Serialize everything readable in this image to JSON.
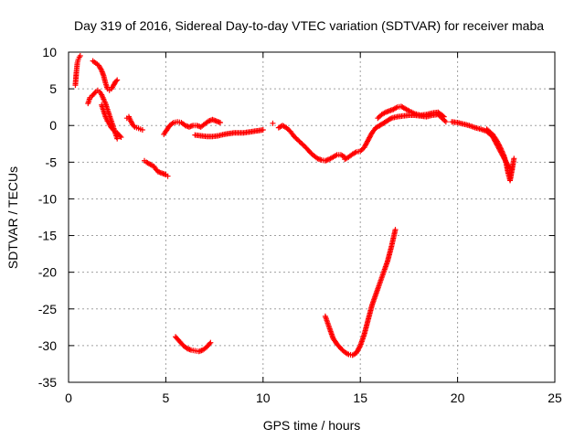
{
  "chart_data": {
    "type": "scatter",
    "title": "Day 319 of 2016, Sidereal Day-to-day VTEC variation (SDTVAR) for receiver maba",
    "xlabel": "GPS time / hours",
    "ylabel": "SDTVAR / TECUs",
    "xlim": [
      0,
      25
    ],
    "ylim": [
      -35,
      10
    ],
    "xticks": [
      0,
      5,
      10,
      15,
      20,
      25
    ],
    "yticks": [
      -35,
      -30,
      -25,
      -20,
      -15,
      -10,
      -5,
      0,
      5,
      10
    ],
    "grid": true,
    "legend": "none",
    "marker": "plus",
    "color": "#ff0000",
    "series": [
      {
        "x": [
          0.35,
          0.4,
          0.45,
          0.5,
          0.55,
          0.6
        ],
        "y": [
          5.5,
          7.2,
          8.5,
          9.0,
          9.3,
          9.5
        ]
      },
      {
        "x": [
          1.0,
          1.1,
          1.2,
          1.3,
          1.4,
          1.5,
          1.6,
          1.7,
          1.8,
          1.9,
          2.0,
          2.1,
          2.2,
          2.3,
          2.4,
          2.5
        ],
        "y": [
          3.0,
          3.8,
          4.0,
          4.3,
          4.6,
          4.8,
          4.6,
          4.2,
          3.6,
          3.0,
          2.2,
          1.4,
          0.6,
          -0.2,
          -1.0,
          -1.8
        ]
      },
      {
        "x": [
          1.25,
          1.4,
          1.55,
          1.7,
          1.8,
          1.9,
          2.0,
          2.1,
          2.2,
          2.3,
          2.4,
          2.5
        ],
        "y": [
          8.8,
          8.5,
          8.2,
          7.5,
          6.8,
          5.8,
          5.0,
          4.8,
          5.0,
          5.4,
          5.9,
          6.2
        ]
      },
      {
        "x": [
          1.7,
          1.8,
          1.9,
          2.0,
          2.1,
          2.2,
          2.3,
          2.4,
          2.5,
          2.6,
          2.7
        ],
        "y": [
          2.8,
          2.0,
          1.2,
          0.6,
          0.2,
          -0.3,
          -0.6,
          -0.8,
          -1.0,
          -1.3,
          -1.6
        ]
      },
      {
        "x": [
          3.0,
          3.1,
          3.2,
          3.3,
          3.4,
          3.5,
          3.6,
          3.7,
          3.8
        ],
        "y": [
          1.0,
          1.2,
          0.6,
          0.1,
          -0.2,
          -0.3,
          -0.4,
          -0.5,
          -0.6
        ]
      },
      {
        "x": [
          3.9,
          4.0,
          4.2,
          4.4,
          4.5,
          4.6,
          4.8,
          5.0,
          5.1
        ],
        "y": [
          -4.8,
          -5.0,
          -5.3,
          -5.6,
          -6.0,
          -6.3,
          -6.5,
          -6.7,
          -6.9
        ]
      },
      {
        "x": [
          4.9,
          5.0,
          5.2,
          5.4,
          5.6,
          5.8,
          6.0,
          6.2,
          6.4,
          6.6,
          6.8,
          7.0,
          7.2,
          7.4,
          7.6,
          7.8
        ],
        "y": [
          -1.2,
          -0.8,
          0.0,
          0.4,
          0.5,
          0.4,
          0.0,
          -0.2,
          0.0,
          0.0,
          -0.2,
          0.2,
          0.6,
          0.8,
          0.6,
          0.4
        ]
      },
      {
        "x": [
          6.5,
          6.8,
          7.1,
          7.4,
          7.7,
          8.0,
          8.5,
          9.0,
          9.5,
          10.0
        ],
        "y": [
          -1.3,
          -1.4,
          -1.5,
          -1.5,
          -1.4,
          -1.2,
          -1.0,
          -1.0,
          -0.8,
          -0.6
        ]
      },
      {
        "x": [
          10.5
        ],
        "y": [
          0.3
        ]
      },
      {
        "x": [
          10.8,
          11.0,
          11.2,
          11.4,
          11.6,
          11.8,
          12.0,
          12.2,
          12.4,
          12.6,
          12.8,
          13.0,
          13.2,
          13.4,
          13.6,
          13.8,
          14.0,
          14.2
        ],
        "y": [
          -0.3,
          0.0,
          -0.3,
          -0.8,
          -1.5,
          -2.0,
          -2.5,
          -3.0,
          -3.6,
          -4.1,
          -4.5,
          -4.7,
          -4.8,
          -4.6,
          -4.3,
          -4.0,
          -4.0,
          -4.3
        ]
      },
      {
        "x": [
          14.2,
          14.4,
          14.6,
          14.8,
          15.0,
          15.2,
          15.4,
          15.6,
          15.8,
          16.0
        ],
        "y": [
          -4.6,
          -4.3,
          -3.9,
          -3.6,
          -3.5,
          -3.0,
          -2.0,
          -1.0,
          -0.3,
          0.0
        ]
      },
      {
        "x": [
          15.9,
          16.1,
          16.3,
          16.5,
          16.7,
          16.9,
          17.1,
          17.3,
          17.5,
          17.8,
          18.1,
          18.4,
          18.7,
          19.0,
          19.3
        ],
        "y": [
          1.0,
          1.5,
          1.8,
          2.0,
          2.2,
          2.5,
          2.6,
          2.3,
          2.0,
          1.6,
          1.4,
          1.5,
          1.7,
          1.8,
          1.2
        ]
      },
      {
        "x": [
          16.0,
          16.3,
          16.6,
          16.9,
          17.2,
          17.5,
          17.8,
          18.1,
          18.4,
          18.7,
          19.0,
          19.2,
          19.4
        ],
        "y": [
          0.0,
          0.5,
          1.0,
          1.2,
          1.3,
          1.4,
          1.4,
          1.3,
          1.2,
          1.4,
          1.5,
          1.0,
          0.5
        ]
      },
      {
        "x": [
          19.7,
          20.0,
          20.3,
          20.6,
          20.9,
          21.2,
          21.5,
          21.8,
          22.0,
          22.2,
          22.4,
          22.6,
          22.8
        ],
        "y": [
          0.5,
          0.4,
          0.2,
          0.0,
          -0.3,
          -0.5,
          -0.8,
          -1.5,
          -2.5,
          -3.5,
          -4.5,
          -5.5,
          -6.0
        ]
      },
      {
        "x": [
          21.5,
          21.8,
          22.0,
          22.2,
          22.4,
          22.5,
          22.6,
          22.7,
          22.8,
          22.9
        ],
        "y": [
          -0.5,
          -1.2,
          -2.0,
          -3.0,
          -4.2,
          -5.2,
          -6.5,
          -7.5,
          -6.0,
          -4.5
        ]
      },
      {
        "x": [
          5.5,
          5.7,
          5.9,
          6.1,
          6.3,
          6.5,
          6.7,
          6.9,
          7.1,
          7.3
        ],
        "y": [
          -28.8,
          -29.4,
          -30.0,
          -30.4,
          -30.6,
          -30.7,
          -30.8,
          -30.6,
          -30.2,
          -29.6
        ]
      },
      {
        "x": [
          13.2,
          13.4,
          13.6,
          13.8,
          14.0,
          14.2,
          14.4,
          14.6,
          14.8,
          15.0,
          15.2,
          15.4,
          15.6,
          15.8,
          16.0,
          16.2,
          16.4,
          16.6,
          16.8
        ],
        "y": [
          -26.0,
          -27.5,
          -29.0,
          -29.8,
          -30.4,
          -30.9,
          -31.2,
          -31.3,
          -31.0,
          -30.0,
          -28.5,
          -26.5,
          -24.5,
          -23.0,
          -21.5,
          -20.0,
          -18.5,
          -16.5,
          -14.2
        ]
      }
    ]
  }
}
